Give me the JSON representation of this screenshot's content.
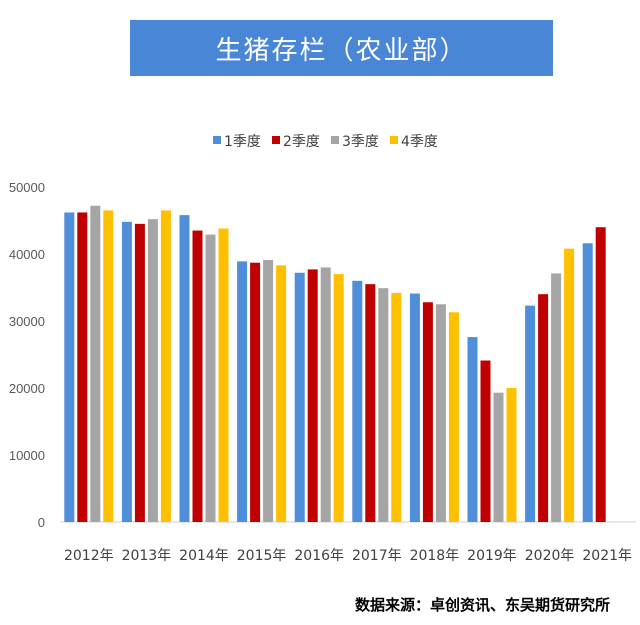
{
  "chart_data": {
    "type": "bar",
    "title": "生猪存栏（农业部）",
    "categories": [
      "2012年",
      "2013年",
      "2014年",
      "2015年",
      "2016年",
      "2017年",
      "2018年",
      "2019年",
      "2020年",
      "2021年"
    ],
    "series": [
      {
        "name": "1季度",
        "color": "#4f8fd9",
        "values": [
          46200,
          44800,
          45800,
          38900,
          37200,
          36000,
          34100,
          27600,
          32300,
          41600
        ]
      },
      {
        "name": "2季度",
        "color": "#c00000",
        "values": [
          46200,
          44500,
          43500,
          38700,
          37700,
          35500,
          32800,
          24100,
          34000,
          44000
        ]
      },
      {
        "name": "3季度",
        "color": "#a5a5a5",
        "values": [
          47200,
          45200,
          42900,
          39100,
          38000,
          34900,
          32500,
          19300,
          37100,
          null
        ]
      },
      {
        "name": "4季度",
        "color": "#ffc000",
        "values": [
          46500,
          46500,
          43800,
          38300,
          37000,
          34200,
          31300,
          20000,
          40800,
          null
        ]
      }
    ],
    "yticks": [
      0,
      10000,
      20000,
      30000,
      40000,
      50000
    ],
    "ylim": [
      0,
      50000
    ],
    "legend_position": "top",
    "grid": false,
    "xlabel": "",
    "ylabel": ""
  },
  "source": "数据来源：卓创资讯、东吴期货研究所"
}
